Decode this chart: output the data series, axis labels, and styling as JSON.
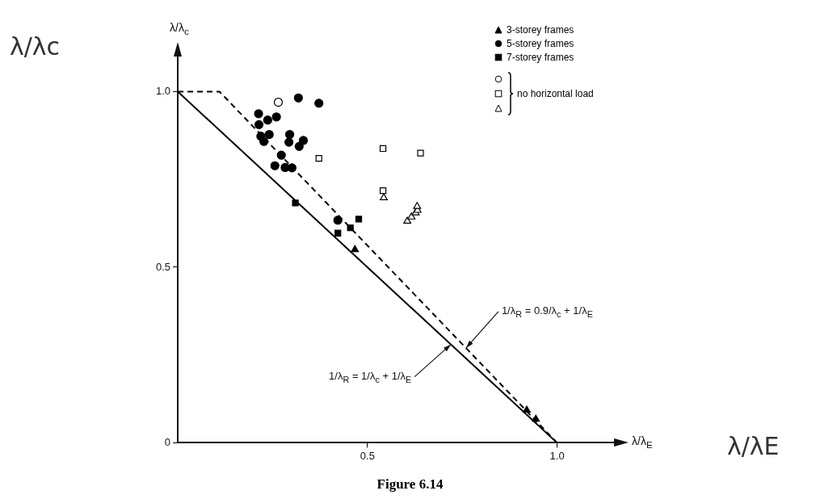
{
  "chart_data": {
    "type": "scatter",
    "title": "Figure 6.14",
    "xlabel": "λ/λ$_{E}$",
    "ylabel": "λ/λ$_{c}$",
    "xlim": [
      0,
      1.15
    ],
    "ylim": [
      0,
      1.1
    ],
    "xticks": [
      0.5,
      {
        "value": 1,
        "label": "1.0"
      }
    ],
    "yticks": [
      0,
      0.5,
      {
        "value": 1,
        "label": "1.0"
      }
    ],
    "grid": false,
    "legend": "top right",
    "annotations": [
      "no horizontal load",
      {
        "text": "1/λ$_{R}$ = 0.9/λ$_{c}$ + 1/λ$_{E}$",
        "x": 0.76,
        "y": 0.27
      },
      {
        "text": "1/λ$_{R}$ = 1/λ$_{c}$ + 1/λ$_{E}$",
        "x": 0.72,
        "y": 0.28
      },
      "λ/λc",
      "λ/λE"
    ],
    "series": [
      {
        "name": "3-storey frames",
        "marker": "triangle",
        "color": "#000000",
        "x": [
          0.467,
          0.92,
          0.944
        ],
        "values": [
          0.55,
          0.093,
          0.067
        ]
      },
      {
        "name": "5-storey frames",
        "marker": "circle",
        "color": "#000000",
        "x": [
          0.318,
          0.372,
          0.213,
          0.237,
          0.26,
          0.214,
          0.219,
          0.227,
          0.241,
          0.295,
          0.293,
          0.331,
          0.32,
          0.273,
          0.256,
          0.283,
          0.301,
          0.422
        ],
        "values": [
          0.982,
          0.967,
          0.937,
          0.919,
          0.928,
          0.906,
          0.873,
          0.858,
          0.878,
          0.878,
          0.856,
          0.861,
          0.844,
          0.819,
          0.789,
          0.784,
          0.783,
          0.634
        ]
      },
      {
        "name": "7-storey frames",
        "marker": "square",
        "color": "#000000",
        "x": [
          0.31,
          0.477,
          0.455,
          0.422
        ],
        "values": [
          0.683,
          0.637,
          0.612,
          0.597
        ]
      },
      {
        "marker": "circle",
        "color": "#ffffff",
        "x": [
          0.265
        ],
        "values": [
          0.97
        ]
      },
      {
        "marker": "square",
        "color": "#ffffff",
        "x": [
          0.541,
          0.64,
          0.372,
          0.541
        ],
        "values": [
          0.838,
          0.825,
          0.81,
          0.718
        ]
      },
      {
        "marker": "triangle",
        "color": "#ffffff",
        "x": [
          0.543,
          0.605,
          0.616,
          0.627,
          0.632,
          0.631
        ],
        "values": [
          0.698,
          0.631,
          0.643,
          0.655,
          0.662,
          0.673
        ]
      },
      {
        "type": "line",
        "marker": "none",
        "line_style": "solid",
        "color": "#000000",
        "x": [
          0,
          1
        ],
        "values": [
          1,
          0
        ]
      },
      {
        "type": "line",
        "marker": "none",
        "line_style": "dashed",
        "color": "#000000",
        "x": [
          0,
          0.11,
          1
        ],
        "values": [
          1,
          1,
          0
        ]
      }
    ]
  }
}
